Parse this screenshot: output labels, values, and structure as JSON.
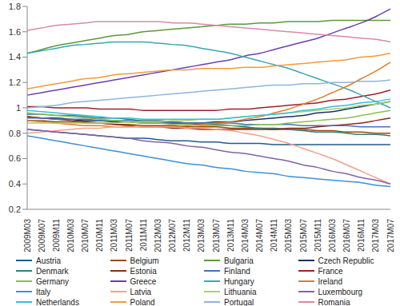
{
  "chart_data": {
    "type": "line",
    "categories": [
      "2009M03",
      "2009M07",
      "2009M11",
      "2010M03",
      "2010M07",
      "2010M11",
      "2011M03",
      "2011M07",
      "2011M11",
      "2012M03",
      "2012M07",
      "2012M11",
      "2013M03",
      "2013M07",
      "2013M11",
      "2014M03",
      "2014M07",
      "2014M11",
      "2015M03",
      "2015M07",
      "2015M11",
      "2016M03",
      "2016M07",
      "2016M11",
      "2017M03",
      "2017M07"
    ],
    "ylim": [
      0.2,
      1.8
    ],
    "yticks": [
      0.2,
      0.4,
      0.6,
      0.8,
      1,
      1.2,
      1.4,
      1.6,
      1.8
    ],
    "grid": false,
    "legend": "bottom",
    "series": [
      {
        "name": "Austria",
        "color": "#1f5b8f",
        "values": [
          0.83,
          0.82,
          0.81,
          0.8,
          0.79,
          0.78,
          0.77,
          0.76,
          0.76,
          0.75,
          0.74,
          0.74,
          0.73,
          0.73,
          0.72,
          0.72,
          0.72,
          0.71,
          0.71,
          0.71,
          0.71,
          0.71,
          0.71,
          0.71,
          0.71,
          0.71
        ]
      },
      {
        "name": "Belgium",
        "color": "#9e480e",
        "values": [
          0.9,
          0.9,
          0.89,
          0.89,
          0.88,
          0.88,
          0.87,
          0.87,
          0.86,
          0.86,
          0.86,
          0.85,
          0.85,
          0.85,
          0.84,
          0.84,
          0.84,
          0.83,
          0.83,
          0.83,
          0.82,
          0.82,
          0.81,
          0.81,
          0.8,
          0.8
        ]
      },
      {
        "name": "Bulgaria",
        "color": "#5a9a3a",
        "values": [
          1.43,
          1.46,
          1.49,
          1.51,
          1.53,
          1.55,
          1.57,
          1.58,
          1.6,
          1.61,
          1.62,
          1.63,
          1.64,
          1.65,
          1.66,
          1.66,
          1.67,
          1.67,
          1.68,
          1.68,
          1.68,
          1.69,
          1.69,
          1.69,
          1.69,
          1.69
        ]
      },
      {
        "name": "Czech Republic",
        "color": "#1f2e6b",
        "values": [
          0.93,
          0.92,
          0.92,
          0.91,
          0.9,
          0.9,
          0.89,
          0.89,
          0.88,
          0.88,
          0.88,
          0.88,
          0.88,
          0.89,
          0.89,
          0.9,
          0.91,
          0.92,
          0.93,
          0.94,
          0.96,
          0.97,
          0.99,
          1.01,
          1.03,
          1.05
        ]
      },
      {
        "name": "Denmark",
        "color": "#2e7d7d",
        "values": [
          0.95,
          0.95,
          0.94,
          0.94,
          0.93,
          0.92,
          0.92,
          0.91,
          0.9,
          0.9,
          0.89,
          0.88,
          0.87,
          0.87,
          0.86,
          0.85,
          0.84,
          0.84,
          0.83,
          0.82,
          0.81,
          0.81,
          0.8,
          0.79,
          0.79,
          0.78
        ]
      },
      {
        "name": "Estonia",
        "color": "#8b2e1a",
        "values": [
          0.93,
          0.92,
          0.91,
          0.9,
          0.89,
          0.88,
          0.87,
          0.86,
          0.85,
          0.85,
          0.84,
          0.84,
          0.83,
          0.83,
          0.83,
          0.83,
          0.83,
          0.83,
          0.84,
          0.84,
          0.85,
          0.86,
          0.87,
          0.88,
          0.9,
          0.92
        ]
      },
      {
        "name": "Finland",
        "color": "#4472c4",
        "values": [
          0.92,
          0.92,
          0.91,
          0.91,
          0.91,
          0.9,
          0.9,
          0.9,
          0.89,
          0.89,
          0.89,
          0.88,
          0.88,
          0.88,
          0.88,
          0.87,
          0.87,
          0.87,
          0.87,
          0.86,
          0.86,
          0.86,
          0.86,
          0.85,
          0.85,
          0.85
        ]
      },
      {
        "name": "France",
        "color": "#a0202a",
        "values": [
          1.01,
          1.01,
          1.0,
          1.0,
          1.0,
          0.99,
          0.99,
          0.99,
          0.98,
          0.98,
          0.98,
          0.98,
          0.98,
          0.98,
          0.99,
          0.99,
          1.0,
          1.01,
          1.02,
          1.03,
          1.04,
          1.06,
          1.07,
          1.09,
          1.11,
          1.14
        ]
      },
      {
        "name": "Germany",
        "color": "#8cbf4a",
        "values": [
          0.96,
          0.95,
          0.94,
          0.93,
          0.92,
          0.91,
          0.9,
          0.89,
          0.88,
          0.88,
          0.87,
          0.87,
          0.86,
          0.86,
          0.86,
          0.86,
          0.87,
          0.87,
          0.88,
          0.89,
          0.9,
          0.91,
          0.92,
          0.94,
          0.96,
          0.98
        ]
      },
      {
        "name": "Greece",
        "color": "#6a3fb5",
        "values": [
          1.1,
          1.12,
          1.14,
          1.16,
          1.18,
          1.2,
          1.22,
          1.24,
          1.26,
          1.28,
          1.3,
          1.32,
          1.34,
          1.36,
          1.38,
          1.41,
          1.43,
          1.46,
          1.49,
          1.52,
          1.55,
          1.59,
          1.63,
          1.67,
          1.72,
          1.78
        ]
      },
      {
        "name": "Hungary",
        "color": "#3aa6b8",
        "values": [
          1.43,
          1.45,
          1.47,
          1.49,
          1.5,
          1.51,
          1.52,
          1.52,
          1.52,
          1.51,
          1.5,
          1.49,
          1.47,
          1.45,
          1.43,
          1.4,
          1.37,
          1.34,
          1.31,
          1.27,
          1.23,
          1.19,
          1.15,
          1.1,
          1.05,
          1.0
        ]
      },
      {
        "name": "Ireland",
        "color": "#e07b24",
        "values": [
          0.9,
          0.89,
          0.88,
          0.87,
          0.86,
          0.86,
          0.85,
          0.85,
          0.85,
          0.85,
          0.85,
          0.86,
          0.87,
          0.88,
          0.89,
          0.91,
          0.93,
          0.96,
          0.99,
          1.03,
          1.07,
          1.12,
          1.17,
          1.23,
          1.29,
          1.36
        ]
      },
      {
        "name": "Italy",
        "color": "#3f8fd8",
        "values": [
          0.78,
          0.76,
          0.74,
          0.72,
          0.7,
          0.68,
          0.66,
          0.64,
          0.62,
          0.6,
          0.58,
          0.56,
          0.55,
          0.53,
          0.52,
          0.5,
          0.49,
          0.48,
          0.46,
          0.45,
          0.44,
          0.43,
          0.42,
          0.41,
          0.39,
          0.38
        ]
      },
      {
        "name": "Latvia",
        "color": "#f4a08a",
        "values": [
          0.8,
          0.81,
          0.82,
          0.83,
          0.84,
          0.84,
          0.85,
          0.85,
          0.85,
          0.85,
          0.85,
          0.84,
          0.84,
          0.83,
          0.82,
          0.8,
          0.78,
          0.75,
          0.72,
          0.68,
          0.64,
          0.6,
          0.55,
          0.5,
          0.45,
          0.4
        ]
      },
      {
        "name": "Lithuania",
        "color": "#a9d06a",
        "values": [
          0.88,
          0.88,
          0.88,
          0.88,
          0.88,
          0.88,
          0.88,
          0.89,
          0.89,
          0.89,
          0.9,
          0.9,
          0.91,
          0.91,
          0.92,
          0.93,
          0.94,
          0.95,
          0.96,
          0.97,
          0.98,
          0.99,
          1.0,
          1.02,
          1.03,
          1.05
        ]
      },
      {
        "name": "Luxembourg",
        "color": "#8064a2",
        "values": [
          0.83,
          0.82,
          0.81,
          0.8,
          0.79,
          0.78,
          0.77,
          0.76,
          0.74,
          0.73,
          0.72,
          0.7,
          0.69,
          0.67,
          0.65,
          0.64,
          0.62,
          0.6,
          0.58,
          0.55,
          0.53,
          0.5,
          0.48,
          0.45,
          0.43,
          0.4
        ]
      },
      {
        "name": "Netherlands",
        "color": "#33c0d8",
        "values": [
          0.98,
          0.97,
          0.96,
          0.95,
          0.94,
          0.93,
          0.92,
          0.92,
          0.91,
          0.91,
          0.91,
          0.91,
          0.91,
          0.91,
          0.92,
          0.93,
          0.94,
          0.95,
          0.96,
          0.98,
          0.99,
          1.01,
          1.02,
          1.04,
          1.05,
          1.07
        ]
      },
      {
        "name": "Poland",
        "color": "#f59a3c",
        "values": [
          1.15,
          1.17,
          1.19,
          1.21,
          1.23,
          1.24,
          1.26,
          1.27,
          1.28,
          1.29,
          1.3,
          1.3,
          1.31,
          1.31,
          1.31,
          1.32,
          1.32,
          1.33,
          1.34,
          1.35,
          1.36,
          1.37,
          1.38,
          1.4,
          1.41,
          1.43
        ]
      },
      {
        "name": "Portugal",
        "color": "#8fb4e0",
        "values": [
          1.0,
          1.01,
          1.02,
          1.04,
          1.05,
          1.06,
          1.07,
          1.08,
          1.09,
          1.1,
          1.11,
          1.12,
          1.13,
          1.14,
          1.15,
          1.16,
          1.17,
          1.18,
          1.18,
          1.19,
          1.19,
          1.2,
          1.2,
          1.21,
          1.21,
          1.22
        ]
      },
      {
        "name": "Romania",
        "color": "#d98aa8",
        "values": [
          1.61,
          1.63,
          1.65,
          1.66,
          1.67,
          1.68,
          1.68,
          1.68,
          1.68,
          1.68,
          1.67,
          1.67,
          1.66,
          1.65,
          1.64,
          1.63,
          1.62,
          1.61,
          1.6,
          1.59,
          1.58,
          1.57,
          1.56,
          1.55,
          1.54,
          1.52
        ]
      }
    ]
  }
}
